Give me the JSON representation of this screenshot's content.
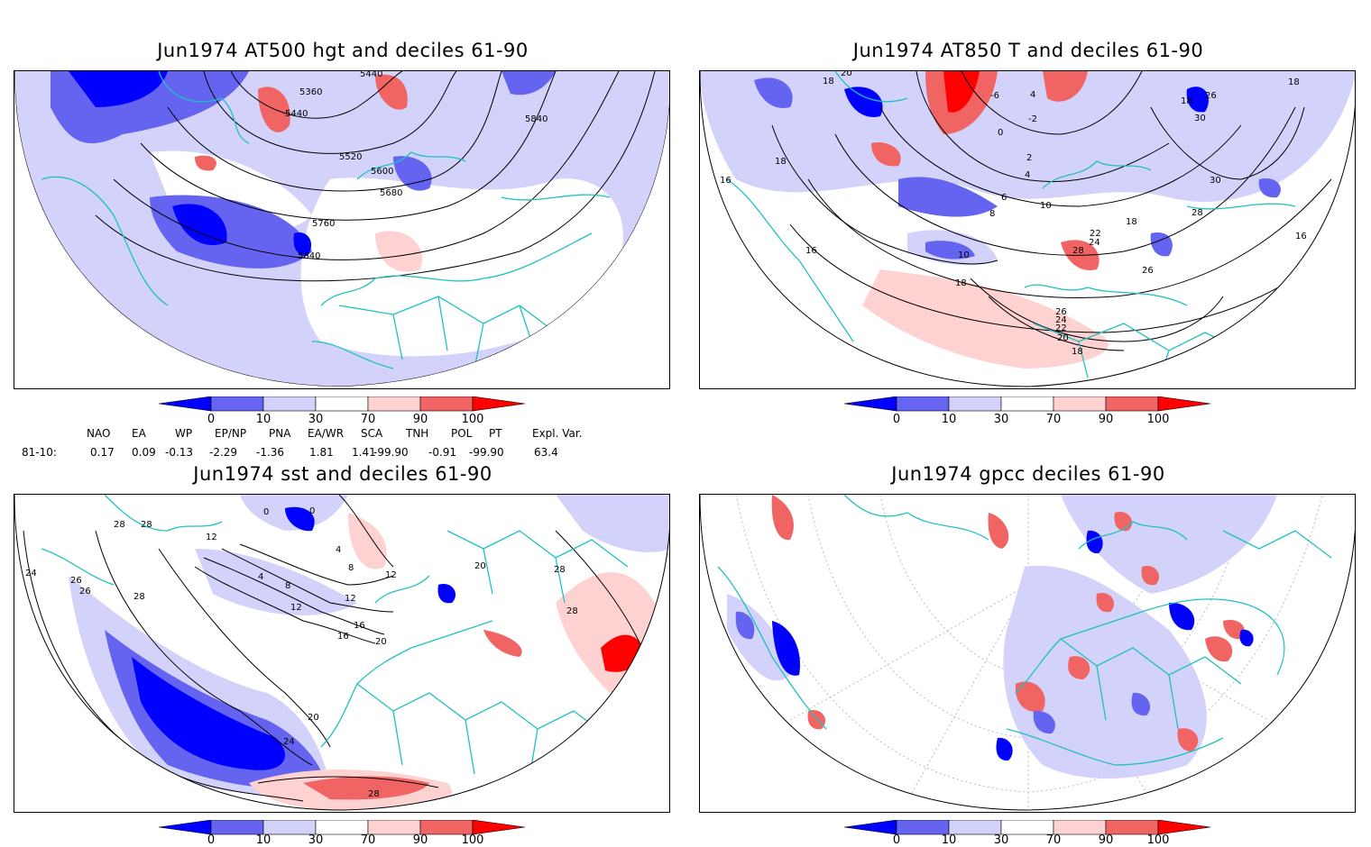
{
  "panels": [
    {
      "id": "hgt",
      "title": "Jun1974 AT500 hgt and deciles 61-90",
      "contour_labels": [
        "5440",
        "5360",
        "5440",
        "5840",
        "5520",
        "5600",
        "5680",
        "5760",
        "5840"
      ]
    },
    {
      "id": "t850",
      "title": "Jun1974 AT850 T and deciles 61-90",
      "contour_labels": [
        "20",
        "18",
        "-6",
        "4",
        "-2",
        "0",
        "18",
        "26",
        "30",
        "18",
        "18",
        "2",
        "4",
        "6",
        "8",
        "10",
        "30",
        "28",
        "22",
        "24",
        "18",
        "10",
        "16",
        "16",
        "28",
        "26",
        "18",
        "26",
        "24",
        "22",
        "20",
        "18",
        "16"
      ]
    },
    {
      "id": "sst",
      "title": "Jun1974 sst and deciles 61-90",
      "contour_labels": [
        "0",
        "0",
        "28",
        "28",
        "12",
        "4",
        "8",
        "12",
        "16",
        "16",
        "20",
        "12",
        "12",
        "4",
        "8",
        "26",
        "28",
        "24",
        "20",
        "20",
        "28",
        "28",
        "28",
        "24",
        "26"
      ]
    },
    {
      "id": "gpcc",
      "title": "Jun1974 gpcc deciles 61-90",
      "contour_labels": []
    }
  ],
  "colorbar": {
    "labels": [
      "0",
      "10",
      "30",
      "70",
      "90",
      "100"
    ],
    "colors": [
      "#0000ff",
      "#6464f0",
      "#d2d2fa",
      "#ffffff",
      "#ffd2d2",
      "#f06464",
      "#ff0000"
    ]
  },
  "indices": {
    "headers": [
      "NAO",
      "EA",
      "WP",
      "EP/NP",
      "PNA",
      "EA/WR",
      "SCA",
      "TNH",
      "POL",
      "PT",
      "Expl. Var."
    ],
    "row_label": "81-10:",
    "values": [
      "0.17",
      "0.09",
      "-0.13",
      "-2.29",
      "-1.36",
      "1.81",
      "1.41",
      "-99.90",
      "-0.91",
      "-99.90",
      "63.4"
    ]
  },
  "colors": {
    "coast": "#20c0c0",
    "deep_neg": "#0000ff",
    "mid_neg": "#6464f0",
    "light_neg": "#d2d2fa",
    "light_pos": "#ffd2d2",
    "mid_pos": "#f06464",
    "deep_pos": "#ff0000"
  }
}
